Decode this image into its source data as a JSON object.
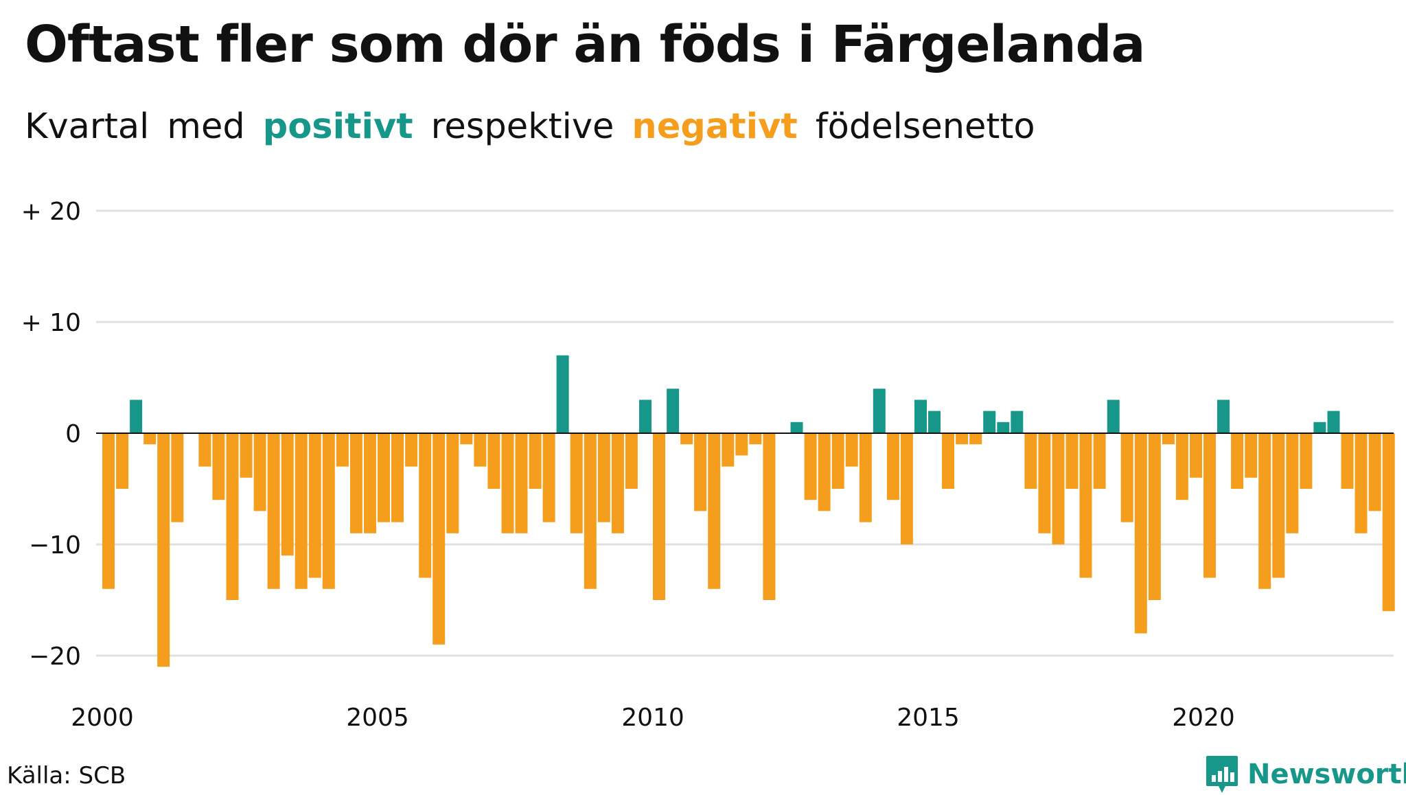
{
  "header": {
    "title": "Oftast fler som dör än föds i Färgelanda",
    "subtitle": {
      "part1": "Kvartal",
      "part2": "med",
      "positive": "positivt",
      "part3": "respektive",
      "negative": "negativt",
      "part4": "födelsenetto"
    }
  },
  "footer": {
    "source": "Källa: SCB",
    "brand": "Newsworthy"
  },
  "colors": {
    "positive": "#17978a",
    "negative": "#f59e1d",
    "grid": "#e0e0e0",
    "zero_line": "#111111"
  },
  "chart_data": {
    "type": "bar",
    "title": "Oftast fler som dör än föds i Färgelanda",
    "subtitle": "Kvartal med positivt respektive negativt födelsenetto",
    "xlabel": "",
    "ylabel": "",
    "ylim": [
      -24,
      22
    ],
    "x_start_year": 2000,
    "x_ticks": [
      "2000",
      "2005",
      "2010",
      "2015",
      "2020"
    ],
    "y_ticks": [
      {
        "value": 20,
        "label": "+ 20"
      },
      {
        "value": 10,
        "label": "+ 10"
      },
      {
        "value": 0,
        "label": "0"
      },
      {
        "value": -10,
        "label": "−10"
      },
      {
        "value": -20,
        "label": "−20"
      }
    ],
    "grid": true,
    "values": [
      -14,
      -5,
      3,
      -1,
      -21,
      -8,
      0,
      -3,
      -6,
      -15,
      -4,
      -7,
      -14,
      -11,
      -14,
      -13,
      -14,
      -3,
      -9,
      -9,
      -8,
      -8,
      -3,
      -13,
      -19,
      -9,
      -1,
      -3,
      -5,
      -9,
      -9,
      -5,
      -8,
      7,
      -9,
      -14,
      -8,
      -9,
      -5,
      3,
      -15,
      4,
      -1,
      -7,
      -14,
      -3,
      -2,
      -1,
      -15,
      0,
      1,
      -6,
      -7,
      -5,
      -3,
      -8,
      4,
      -6,
      -10,
      3,
      2,
      -5,
      -1,
      -1,
      2,
      1,
      2,
      -5,
      -9,
      -10,
      -5,
      -13,
      -5,
      3,
      -8,
      -18,
      -15,
      -1,
      -6,
      -4,
      -13,
      3,
      -5,
      -4,
      -14,
      -13,
      -9,
      -5,
      1,
      2,
      -5,
      -9,
      -7,
      -16
    ]
  }
}
